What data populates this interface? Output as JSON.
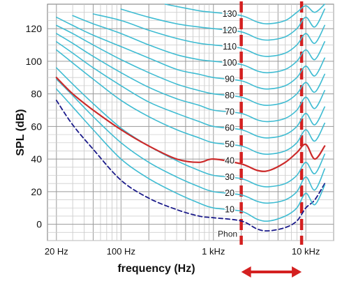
{
  "chart_data": {
    "type": "line",
    "xlabel": "frequency (Hz)",
    "ylabel": "SPL (dB)",
    "x_scale": "log",
    "xlim": [
      16,
      20000
    ],
    "ylim": [
      -10,
      135
    ],
    "grid": true,
    "x_ticks": [
      {
        "value": 20,
        "label": "20 Hz"
      },
      {
        "value": 100,
        "label": "100 Hz"
      },
      {
        "value": 1000,
        "label": "1 kHz"
      },
      {
        "value": 10000,
        "label": "10 kHz"
      }
    ],
    "y_ticks": [
      0,
      20,
      40,
      60,
      80,
      100,
      120
    ],
    "phon_unit_label": "Phon",
    "phon_labels": [
      "10",
      "20",
      "30",
      "40",
      "50",
      "60",
      "70",
      "80",
      "90",
      "100",
      "110",
      "120",
      "130"
    ],
    "series": [
      {
        "kind": "threshold",
        "name": "",
        "color": "#1a1a8a",
        "dashed": true,
        "x": [
          20,
          30,
          50,
          100,
          200,
          400,
          700,
          1000,
          2000,
          3000,
          4000,
          6000,
          8000,
          10000,
          12500,
          16000
        ],
        "y": [
          76,
          61,
          46,
          27,
          16,
          9,
          5,
          4,
          2,
          -3,
          -4,
          -2,
          2,
          10,
          15,
          25
        ]
      },
      {
        "kind": "contour",
        "name": "10",
        "color": "#3fbcd2",
        "dashed": false,
        "x": [
          20,
          30,
          50,
          100,
          200,
          400,
          700,
          1000,
          2000,
          3000,
          4000,
          6000,
          8000,
          10000,
          12500,
          16000
        ],
        "y": [
          83,
          72,
          58,
          40,
          28,
          19,
          13,
          10,
          8,
          3,
          2,
          5,
          10,
          19,
          12,
          24
        ]
      },
      {
        "kind": "contour",
        "name": "20",
        "color": "#3fbcd2",
        "dashed": false,
        "x": [
          20,
          30,
          50,
          100,
          200,
          400,
          700,
          1000,
          2000,
          3000,
          4000,
          6000,
          8000,
          10000,
          12500,
          16000
        ],
        "y": [
          89,
          79,
          66,
          50,
          38,
          29,
          23,
          20,
          18,
          14,
          13,
          15,
          20,
          29,
          21,
          34
        ]
      },
      {
        "kind": "contour",
        "name": "30",
        "color": "#3fbcd2",
        "dashed": false,
        "x": [
          20,
          30,
          50,
          100,
          200,
          400,
          700,
          1000,
          2000,
          3000,
          4000,
          6000,
          8000,
          10000,
          12500,
          16000
        ],
        "y": [
          96,
          86,
          74,
          59,
          48,
          39,
          33,
          30,
          28,
          24,
          23,
          25,
          30,
          38,
          31,
          43
        ]
      },
      {
        "kind": "contour",
        "name": "40",
        "color": "#cc2a2a",
        "dashed": false,
        "highlight": true,
        "x": [
          20,
          30,
          50,
          100,
          200,
          400,
          700,
          1000,
          2000,
          3000,
          4000,
          6000,
          8000,
          10000,
          12500,
          16000
        ],
        "y": [
          90,
          80,
          70,
          58,
          48,
          40,
          38,
          40,
          37,
          33,
          33,
          38,
          44,
          49,
          40,
          48
        ]
      },
      {
        "kind": "contour",
        "name": "50",
        "color": "#3fbcd2",
        "dashed": false,
        "x": [
          20,
          30,
          50,
          100,
          200,
          400,
          700,
          1000,
          2000,
          3000,
          4000,
          6000,
          8000,
          10000,
          12500,
          16000
        ],
        "y": [
          107,
          99,
          89,
          76,
          66,
          58,
          53,
          50,
          48,
          44,
          43,
          45,
          50,
          58,
          51,
          62
        ]
      },
      {
        "kind": "contour",
        "name": "60",
        "color": "#3fbcd2",
        "dashed": false,
        "x": [
          20,
          30,
          50,
          100,
          200,
          400,
          700,
          1000,
          2000,
          3000,
          4000,
          6000,
          8000,
          10000,
          12500,
          16000
        ],
        "y": [
          112,
          105,
          96,
          85,
          75,
          68,
          63,
          60,
          58,
          54,
          53,
          55,
          60,
          68,
          61,
          72
        ]
      },
      {
        "kind": "contour",
        "name": "70",
        "color": "#3fbcd2",
        "dashed": false,
        "x": [
          20,
          30,
          50,
          100,
          200,
          400,
          700,
          1000,
          2000,
          3000,
          4000,
          6000,
          8000,
          10000,
          12500,
          16000
        ],
        "y": [
          117,
          111,
          103,
          93,
          84,
          77,
          73,
          70,
          68,
          64,
          63,
          65,
          70,
          78,
          71,
          82
        ]
      },
      {
        "kind": "contour",
        "name": "80",
        "color": "#3fbcd2",
        "dashed": false,
        "x": [
          20,
          30,
          50,
          100,
          200,
          400,
          700,
          1000,
          2000,
          3000,
          4000,
          6000,
          8000,
          10000,
          12500,
          16000
        ],
        "y": [
          122,
          117,
          110,
          101,
          93,
          86,
          82,
          80,
          78,
          74,
          73,
          75,
          80,
          87,
          81,
          92
        ]
      },
      {
        "kind": "contour",
        "name": "90",
        "color": "#3fbcd2",
        "dashed": false,
        "x": [
          20,
          30,
          50,
          100,
          200,
          400,
          700,
          1000,
          2000,
          3000,
          4000,
          6000,
          8000,
          10000,
          12500,
          16000
        ],
        "y": [
          127,
          122,
          116,
          109,
          102,
          95,
          92,
          90,
          88,
          84,
          83,
          85,
          90,
          97,
          91,
          102
        ]
      },
      {
        "kind": "contour",
        "name": "100",
        "color": "#3fbcd2",
        "dashed": false,
        "x": [
          30,
          50,
          100,
          200,
          400,
          700,
          1000,
          2000,
          3000,
          4000,
          6000,
          8000,
          10000,
          12500,
          16000
        ],
        "y": [
          128,
          123,
          117,
          110,
          104,
          101,
          100,
          98,
          94,
          93,
          95,
          100,
          107,
          101,
          112
        ]
      },
      {
        "kind": "contour",
        "name": "110",
        "color": "#3fbcd2",
        "dashed": false,
        "x": [
          50,
          100,
          200,
          400,
          700,
          1000,
          2000,
          3000,
          4000,
          6000,
          8000,
          10000,
          12500,
          16000
        ],
        "y": [
          129,
          125,
          119,
          114,
          111,
          110,
          108,
          104,
          103,
          105,
          110,
          117,
          111,
          122
        ]
      },
      {
        "kind": "contour",
        "name": "120",
        "color": "#3fbcd2",
        "dashed": false,
        "x": [
          100,
          200,
          400,
          700,
          1000,
          2000,
          3000,
          4000,
          6000,
          8000,
          10000,
          12500,
          16000
        ],
        "y": [
          132,
          127,
          123,
          121,
          120,
          118,
          114,
          113,
          115,
          120,
          127,
          121,
          132
        ]
      },
      {
        "kind": "contour",
        "name": "130",
        "color": "#3fbcd2",
        "dashed": false,
        "x": [
          300,
          700,
          1000,
          2000,
          3000,
          4000,
          6000,
          8000,
          10000,
          12500,
          16000
        ],
        "y": [
          135,
          131,
          130,
          128,
          124,
          123,
          125,
          130,
          134,
          130,
          135
        ]
      }
    ],
    "marker_lines": [
      {
        "x": 2000,
        "color": "#d42020"
      },
      {
        "x": 9000,
        "color": "#d42020"
      }
    ],
    "range_arrow": {
      "from": 2000,
      "to": 9000,
      "color": "#d42020"
    }
  }
}
